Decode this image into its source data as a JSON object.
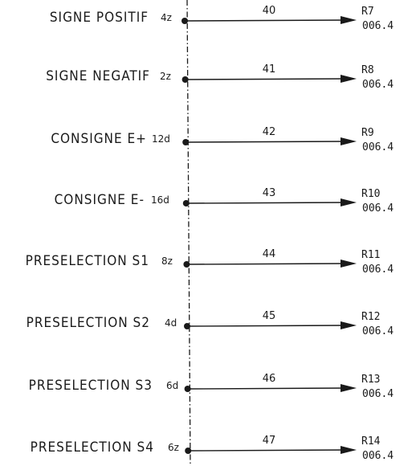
{
  "signals": [
    {
      "label": "SIGNE POSITIF",
      "pin": "4z",
      "wire": "40",
      "ref": "R7",
      "value": "006.4"
    },
    {
      "label": "SIGNE NEGATIF",
      "pin": "2z",
      "wire": "41",
      "ref": "R8",
      "value": "006.4"
    },
    {
      "label": "CONSIGNE E+",
      "pin": "12d",
      "wire": "42",
      "ref": "R9",
      "value": "006.4"
    },
    {
      "label": "CONSIGNE E-",
      "pin": "16d",
      "wire": "43",
      "ref": "R10",
      "value": "006.4"
    },
    {
      "label": "PRESELECTION S1",
      "pin": "8z",
      "wire": "44",
      "ref": "R11",
      "value": "006.4"
    },
    {
      "label": "PRESELECTION S2",
      "pin": "4d",
      "wire": "45",
      "ref": "R12",
      "value": "006.4"
    },
    {
      "label": "PRESELECTION S3",
      "pin": "6d",
      "wire": "46",
      "ref": "R13",
      "value": "006.4"
    },
    {
      "label": "PRESELECTION S4",
      "pin": "6z",
      "wire": "47",
      "ref": "R14",
      "value": "006.4"
    }
  ]
}
